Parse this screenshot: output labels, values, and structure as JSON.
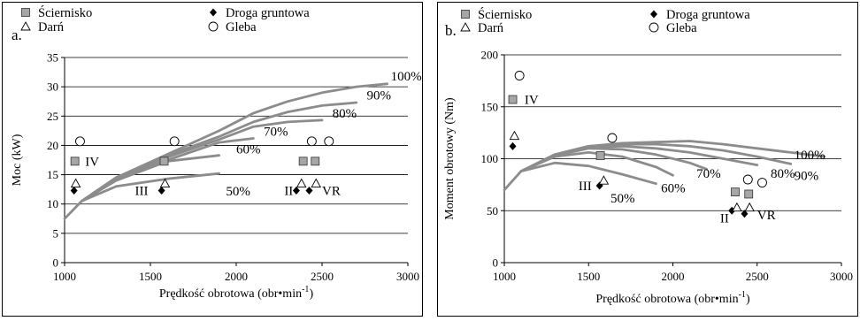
{
  "chart_data": [
    {
      "panel_label": "a.",
      "type": "line",
      "xlabel": "Prędkość obrotowa (obr•min",
      "xlabel_sup": "-1",
      "xlabel_tail": ")",
      "ylabel": "Moc (kW)",
      "xlim": [
        1000,
        3000
      ],
      "ylim": [
        0,
        35
      ],
      "xticks": [
        1000,
        1500,
        2000,
        2500,
        3000
      ],
      "yticks": [
        0,
        5,
        10,
        15,
        20,
        25,
        30,
        35
      ],
      "grid": "horizontal",
      "legend": {
        "placement": "top",
        "entries": [
          {
            "label": "Ściernisko",
            "marker": "square"
          },
          {
            "label": "Droga gruntowa",
            "marker": "diamond"
          },
          {
            "label": "Darń",
            "marker": "triangle"
          },
          {
            "label": "Gleba",
            "marker": "circle"
          }
        ]
      },
      "series": [
        {
          "name": "100%",
          "x": [
            1000,
            1100,
            1300,
            1600,
            1900,
            2100,
            2300,
            2500,
            2700,
            2880
          ],
          "y": [
            7.5,
            10.5,
            14.5,
            18.5,
            22.5,
            25.5,
            27.5,
            29,
            30,
            30.5
          ]
        },
        {
          "name": "90%",
          "x": [
            1100,
            1300,
            1600,
            1900,
            2100,
            2300,
            2500,
            2700
          ],
          "y": [
            10.5,
            14.5,
            18.3,
            21.5,
            24,
            25.7,
            26.8,
            27.3
          ]
        },
        {
          "name": "80%",
          "x": [
            1100,
            1300,
            1600,
            1900,
            2100,
            2300,
            2500
          ],
          "y": [
            10.5,
            14.5,
            18,
            21,
            23.2,
            24,
            24.3
          ]
        },
        {
          "name": "70%",
          "x": [
            1100,
            1300,
            1600,
            1900,
            2100
          ],
          "y": [
            10.5,
            14.3,
            17.5,
            20.5,
            21.2
          ]
        },
        {
          "name": "60%",
          "x": [
            1100,
            1300,
            1600,
            1900
          ],
          "y": [
            10.5,
            14,
            17.3,
            18.3
          ]
        },
        {
          "name": "50%",
          "x": [
            1100,
            1300,
            1600,
            1900
          ],
          "y": [
            10.5,
            13,
            14.3,
            15.2
          ]
        }
      ],
      "curve_labels": [
        {
          "text": "100%",
          "x": 2900,
          "y": 31.8
        },
        {
          "text": "90%",
          "x": 2760,
          "y": 28.6
        },
        {
          "text": "80%",
          "x": 2560,
          "y": 25.5
        },
        {
          "text": "70%",
          "x": 2160,
          "y": 22.4
        },
        {
          "text": "60%",
          "x": 2000,
          "y": 19.4
        },
        {
          "text": "50%",
          "x": 1940,
          "y": 12.2
        }
      ],
      "points": [
        {
          "group": "Ściernisko",
          "marker": "square",
          "x": [
            1060,
            1580,
            2390,
            2460
          ],
          "y": [
            17.3,
            17.3,
            17.3,
            17.3
          ]
        },
        {
          "group": "Droga gruntowa",
          "marker": "diamond",
          "x": [
            1055,
            1565,
            2350,
            2425
          ],
          "y": [
            12.3,
            12.3,
            12.3,
            12.3
          ]
        },
        {
          "group": "Darń",
          "marker": "triangle",
          "x": [
            1065,
            1585,
            2380,
            2465
          ],
          "y": [
            13.5,
            13.5,
            13.5,
            13.5
          ]
        },
        {
          "group": "Gleba",
          "marker": "circle",
          "x": [
            1090,
            1640,
            2440,
            2540
          ],
          "y": [
            20.7,
            20.7,
            20.7,
            20.7
          ]
        }
      ],
      "annotations": [
        {
          "text": "IV",
          "x": 1120,
          "y": 17.3
        },
        {
          "text": "III",
          "x": 1410,
          "y": 12.3
        },
        {
          "text": "II",
          "x": 2280,
          "y": 12.3
        },
        {
          "text": "VR",
          "x": 2500,
          "y": 12.3
        }
      ]
    },
    {
      "panel_label": "b.",
      "type": "line",
      "xlabel": "Prędkość obrotowa (obr•min",
      "xlabel_sup": "-1",
      "xlabel_tail": ")",
      "ylabel": "Moment obrotowy (Nm)",
      "xlim": [
        1000,
        3000
      ],
      "ylim": [
        0,
        200
      ],
      "xticks": [
        1000,
        1500,
        2000,
        2500,
        3000
      ],
      "yticks": [
        0,
        50,
        100,
        150,
        200
      ],
      "grid": "horizontal",
      "legend": {
        "placement": "top",
        "entries": [
          {
            "label": "Ściernisko",
            "marker": "square"
          },
          {
            "label": "Droga gruntowa",
            "marker": "diamond"
          },
          {
            "label": "Darń",
            "marker": "triangle"
          },
          {
            "label": "Gleba",
            "marker": "circle"
          }
        ]
      },
      "series": [
        {
          "name": "100%",
          "x": [
            1000,
            1100,
            1300,
            1500,
            1700,
            1900,
            2100,
            2300,
            2500,
            2700,
            2900
          ],
          "y": [
            70,
            88,
            104,
            112,
            115,
            116,
            117,
            114,
            110,
            106,
            102
          ]
        },
        {
          "name": "90%",
          "x": [
            1100,
            1300,
            1500,
            1700,
            1900,
            2100,
            2300,
            2500,
            2700
          ],
          "y": [
            88,
            104,
            112,
            114,
            114,
            112,
            108,
            102,
            95
          ]
        },
        {
          "name": "80%",
          "x": [
            1100,
            1300,
            1500,
            1700,
            1900,
            2100,
            2300,
            2500
          ],
          "y": [
            88,
            104,
            111,
            112,
            110,
            106,
            100,
            94
          ]
        },
        {
          "name": "70%",
          "x": [
            1100,
            1300,
            1500,
            1700,
            1900,
            2100,
            2200
          ],
          "y": [
            88,
            103,
            110,
            109,
            104,
            96,
            90
          ]
        },
        {
          "name": "60%",
          "x": [
            1100,
            1300,
            1500,
            1700,
            1900,
            2000
          ],
          "y": [
            88,
            102,
            106,
            102,
            92,
            84
          ]
        },
        {
          "name": "50%",
          "x": [
            1100,
            1300,
            1500,
            1700,
            1900
          ],
          "y": [
            88,
            96,
            93,
            85,
            76
          ]
        }
      ],
      "curve_labels": [
        {
          "text": "100%",
          "x": 2720,
          "y": 104
        },
        {
          "text": "90%",
          "x": 2720,
          "y": 84
        },
        {
          "text": "80%",
          "x": 2580,
          "y": 86
        },
        {
          "text": "70%",
          "x": 2140,
          "y": 86
        },
        {
          "text": "60%",
          "x": 1930,
          "y": 72
        },
        {
          "text": "50%",
          "x": 1630,
          "y": 62
        }
      ],
      "points": [
        {
          "group": "Ściernisko",
          "marker": "square",
          "x": [
            1050,
            1570,
            2370,
            2450
          ],
          "y": [
            157,
            103,
            68,
            66
          ]
        },
        {
          "group": "Droga gruntowa",
          "marker": "diamond",
          "x": [
            1050,
            1565,
            2350,
            2425
          ],
          "y": [
            112,
            74,
            50,
            47
          ]
        },
        {
          "group": "Darń",
          "marker": "triangle",
          "x": [
            1060,
            1590,
            2380,
            2455
          ],
          "y": [
            122,
            79,
            53,
            53
          ]
        },
        {
          "group": "Gleba",
          "marker": "circle",
          "x": [
            1090,
            1640,
            2445,
            2530
          ],
          "y": [
            180,
            120,
            80,
            77
          ]
        }
      ],
      "annotations": [
        {
          "text": "IV",
          "x": 1120,
          "y": 157
        },
        {
          "text": "III",
          "x": 1440,
          "y": 74
        },
        {
          "text": "II",
          "x": 2280,
          "y": 43
        },
        {
          "text": "VR",
          "x": 2500,
          "y": 46
        }
      ]
    }
  ]
}
